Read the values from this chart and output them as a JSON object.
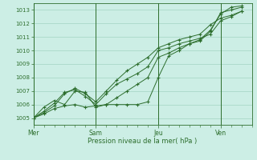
{
  "xlabel": "Pression niveau de la mer( hPa )",
  "bg_color": "#cceee5",
  "grid_color": "#99ccbb",
  "line_color": "#2d6e2d",
  "ylim": [
    1004.5,
    1013.5
  ],
  "yticks": [
    1005,
    1006,
    1007,
    1008,
    1009,
    1010,
    1011,
    1012,
    1013
  ],
  "day_labels": [
    "Mer",
    "Sam",
    "Jeu",
    "Ven"
  ],
  "day_positions": [
    0,
    3,
    6,
    9
  ],
  "xlim": [
    0,
    10.5
  ],
  "series": [
    [
      1005.0,
      1005.8,
      1006.3,
      1006.0,
      1007.0,
      1006.9,
      1005.8,
      1006.0,
      1006.0,
      1006.0,
      1006.0,
      1006.2,
      1008.0,
      1009.6,
      1010.0,
      1010.5,
      1010.7,
      1011.4,
      1012.8,
      1013.0,
      1013.2
    ],
    [
      1005.0,
      1005.5,
      1006.1,
      1006.9,
      1007.1,
      1006.6,
      1006.0,
      1006.8,
      1007.5,
      1007.9,
      1008.3,
      1008.8,
      1010.0,
      1010.2,
      1010.5,
      1010.7,
      1010.9,
      1011.2,
      1012.2,
      1012.5,
      1012.9
    ],
    [
      1005.0,
      1005.4,
      1005.9,
      1006.8,
      1007.2,
      1006.8,
      1006.2,
      1007.0,
      1007.8,
      1008.5,
      1009.0,
      1009.5,
      1010.2,
      1010.5,
      1010.8,
      1011.0,
      1011.2,
      1011.9,
      1012.4,
      1012.6,
      1012.9
    ],
    [
      1005.0,
      1005.3,
      1005.7,
      1005.9,
      1006.0,
      1005.8,
      1005.9,
      1006.0,
      1006.5,
      1007.0,
      1007.5,
      1008.0,
      1009.5,
      1009.8,
      1010.2,
      1010.5,
      1010.8,
      1011.5,
      1012.7,
      1013.2,
      1013.3
    ]
  ]
}
